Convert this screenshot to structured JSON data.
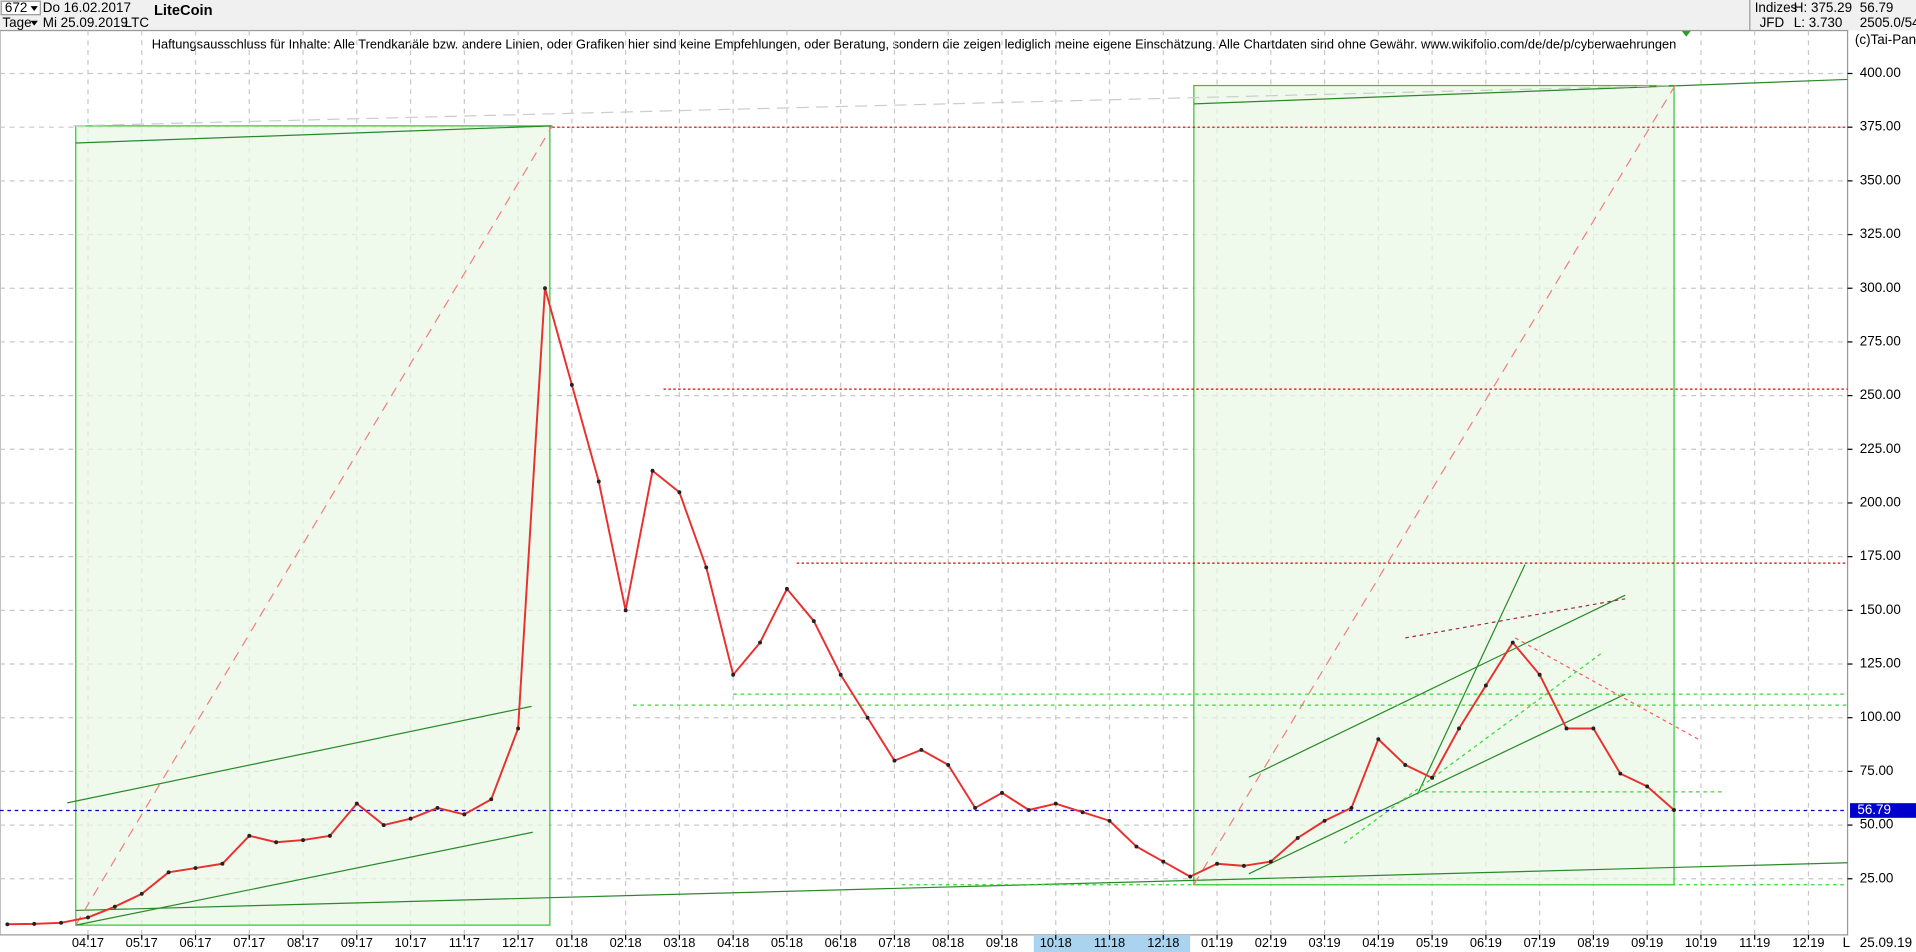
{
  "ui": {
    "bars_count": "672",
    "start_date": "Do 16.02.2017",
    "period": "Tage",
    "end_date": "Mi 25.09.2019",
    "disclaimer": "Haftungsausschluss für Inhalte: Alle Trendkanäle bzw. andere Linien, oder Grafiken hier sind keine Empfehlungen, oder Beratung, sondern die zeigen lediglich meine eigene Einschätzung. Alle Chartdaten sind ohne Gewähr.  www.wikifolio.com/de/de/p/cyberwaehrungen",
    "market": "Indizes",
    "broker": "JFD",
    "high": "H: 375.29",
    "low": "L: 3.730",
    "volume": "2505.0/54",
    "copyright": "(c)Tai-Pan",
    "axis_end_date": "25.09.19",
    "scale_mode": "L"
  },
  "chart_data": {
    "type": "line",
    "title": "LiteCoin",
    "symbol": "LTC",
    "categories": [
      null,
      null,
      null,
      "04.17",
      null,
      "05.17",
      null,
      "06.17",
      null,
      "07.17",
      null,
      "08.17",
      null,
      "09.17",
      null,
      "10.17",
      null,
      "11.17",
      null,
      "12.17",
      null,
      "01.18",
      null,
      "02.18",
      null,
      "03.18",
      null,
      "04.18",
      null,
      "05.18",
      null,
      "06.18",
      null,
      "07.18",
      null,
      "08.18",
      null,
      "09.18",
      null,
      "10.18",
      null,
      "11.18",
      null,
      "12.18",
      null,
      "01.19",
      null,
      "02.19",
      null,
      "03.19",
      null,
      "04.19",
      null,
      "05.19",
      null,
      "06.19",
      null,
      "07.19",
      null,
      "08.19",
      null,
      "09.19",
      null,
      "10.19",
      null,
      "11.19",
      null,
      "12.19",
      null
    ],
    "values": [
      3.8,
      4.0,
      4.5,
      7,
      12,
      18,
      28,
      30,
      32,
      45,
      42,
      43,
      45,
      60,
      50,
      53,
      58,
      55,
      62,
      95,
      300,
      255,
      210,
      150,
      215,
      205,
      170,
      120,
      135,
      160,
      145,
      120,
      100,
      80,
      85,
      78,
      58,
      65,
      57,
      60,
      56,
      52,
      40,
      33,
      26,
      32,
      31,
      33,
      44,
      52,
      58,
      90,
      78,
      72,
      95,
      115,
      135,
      120,
      95,
      95,
      74,
      68,
      57,
      null,
      null,
      null,
      null,
      null,
      null
    ],
    "color": "#e8312f",
    "ylim": [
      0,
      420
    ],
    "yticks": [
      {
        "value": 25,
        "label": "25.00"
      },
      {
        "value": 50,
        "label": "50.00"
      },
      {
        "value": 75,
        "label": "75.00"
      },
      {
        "value": 100,
        "label": "100.00"
      },
      {
        "value": 125,
        "label": "125.00"
      },
      {
        "value": 150,
        "label": "150.00"
      },
      {
        "value": 175,
        "label": "175.00"
      },
      {
        "value": 200,
        "label": "200.00"
      },
      {
        "value": 225,
        "label": "225.00"
      },
      {
        "value": 250,
        "label": "250.00"
      },
      {
        "value": 275,
        "label": "275.00"
      },
      {
        "value": 300,
        "label": "300.00"
      },
      {
        "value": 325,
        "label": "325.00"
      },
      {
        "value": 350,
        "label": "350.00"
      },
      {
        "value": 375,
        "label": "375.00"
      },
      {
        "value": 400,
        "label": "400.00"
      }
    ],
    "grid": true,
    "reference_lines": [
      {
        "value": 375,
        "color": "#e00000"
      },
      {
        "value": 253,
        "color": "#e00000"
      },
      {
        "value": 172,
        "color": "#e00000"
      }
    ],
    "last_price": 56.79,
    "last_price_color": "#0000cc"
  }
}
